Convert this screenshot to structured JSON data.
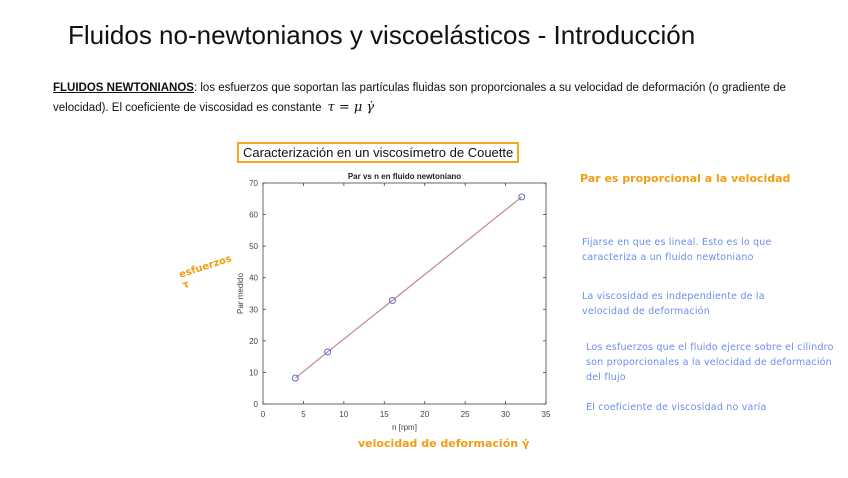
{
  "slide": {
    "title": "Fluidos no-newtonianos y viscoelásticos - Introducción",
    "intro_label": "FLUIDOS NEWTONIANOS",
    "intro_text": ": los esfuerzos que soportan las partículas fluidas son proporcionales a su velocidad de deformación (o gradiente de velocidad). El coeficiente de viscosidad es constante",
    "formula": "τ = μ γ̇",
    "box_title": "Caracterización en un viscosímetro de Couette"
  },
  "annotations": {
    "handwritten_right": "Par es proporcional a la velocidad",
    "handwritten_left": "esfuerzos τ",
    "handwritten_bottom": "velocidad de deformación γ̇",
    "notes": [
      "Fijarse en que es lineal. Esto es lo que caracteriza a un fluido newtoniano",
      "La viscosidad es independiente de la velocidad de deformación",
      "Los esfuerzos que el fluido ejerce sobre el cilindro son proporcionales a la velocidad de deformación del flujo",
      "El coeficiente de viscosidad no varía"
    ]
  },
  "chart_data": {
    "type": "scatter",
    "title": "Par vs n en fluido newtoniano",
    "xlabel": "n [rpm]",
    "ylabel": "Par medido",
    "xlim": [
      0,
      35
    ],
    "ylim": [
      0,
      70
    ],
    "xticks": [
      0,
      5,
      10,
      15,
      20,
      25,
      30,
      35
    ],
    "yticks": [
      0,
      10,
      20,
      30,
      40,
      50,
      60,
      70
    ],
    "grid": false,
    "series": [
      {
        "x": [
          4,
          8,
          16,
          32
        ],
        "y": [
          8.2,
          16.5,
          32.8,
          65.6
        ],
        "marker": "circle",
        "color": "#5555cc",
        "fit_line_color": "#c89090"
      }
    ]
  }
}
